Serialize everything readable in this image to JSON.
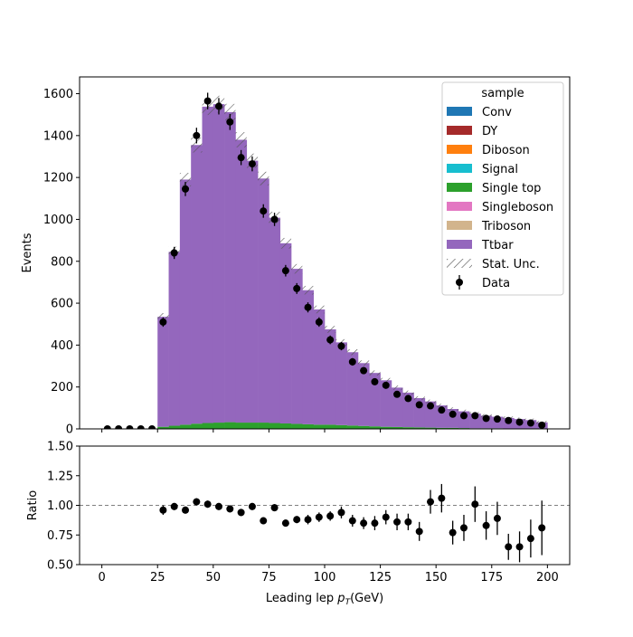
{
  "chart_data": {
    "type": "bar",
    "xlabel": "Leading lep",
    "xlabel_math": "p",
    "xlabel_math_sub": "T",
    "xlabel_unit": "(GeV)",
    "main": {
      "ylabel": "Events",
      "xlim": [
        -10,
        210
      ],
      "ylim": [
        0,
        1680
      ],
      "yticks": [
        "0",
        "200",
        "400",
        "600",
        "800",
        "1000",
        "1200",
        "1400",
        "1600"
      ],
      "ytick_values": [
        0,
        200,
        400,
        600,
        800,
        1000,
        1200,
        1400,
        1600
      ]
    },
    "ratio": {
      "ylabel": "Ratio",
      "ylim": [
        0.5,
        1.5
      ],
      "yticks": [
        "0.50",
        "0.75",
        "1.00",
        "1.25",
        "1.50"
      ],
      "ytick_values": [
        0.5,
        0.75,
        1.0,
        1.25,
        1.5
      ],
      "reference_line": 1.0
    },
    "xticks": [
      "0",
      "25",
      "50",
      "75",
      "100",
      "125",
      "150",
      "175",
      "200"
    ],
    "xtick_values": [
      0,
      25,
      50,
      75,
      100,
      125,
      150,
      175,
      200
    ],
    "bin_edges": [
      25,
      30,
      35,
      40,
      45,
      50,
      55,
      60,
      65,
      70,
      75,
      80,
      85,
      90,
      95,
      100,
      105,
      110,
      115,
      120,
      125,
      130,
      135,
      140,
      145,
      150,
      155,
      160,
      165,
      170,
      175,
      180,
      185,
      190,
      195,
      200
    ],
    "stack": [
      {
        "name": "Conv",
        "color": "#1f77b4",
        "values": [
          0,
          0,
          0,
          0,
          0,
          0,
          0,
          0,
          0,
          0,
          0,
          0,
          0,
          0,
          0,
          0,
          0,
          0,
          0,
          0,
          0,
          0,
          0,
          0,
          0,
          0,
          0,
          0,
          0,
          0,
          0,
          0,
          0,
          0,
          0
        ]
      },
      {
        "name": "DY",
        "color": "#a52a2a",
        "values": [
          0,
          0,
          0,
          0,
          0,
          0,
          0,
          0,
          0,
          0,
          0,
          0,
          0,
          0,
          0,
          0,
          0,
          0,
          0,
          0,
          0,
          0,
          0,
          0,
          0,
          0,
          0,
          0,
          0,
          0,
          0,
          0,
          0,
          0,
          0
        ]
      },
      {
        "name": "Diboson",
        "color": "#ff7f0e",
        "values": [
          0,
          0,
          0,
          0,
          0,
          0,
          0,
          0,
          0,
          0,
          0,
          0,
          0,
          0,
          0,
          0,
          0,
          0,
          0,
          0,
          0,
          0,
          0,
          0,
          0,
          0,
          0,
          0,
          0,
          0,
          0,
          0,
          0,
          0,
          0
        ]
      },
      {
        "name": "Signal",
        "color": "#17becf",
        "values": [
          0,
          0,
          0,
          0,
          0,
          0,
          0,
          0,
          0,
          0,
          0,
          0,
          0,
          0,
          0,
          0,
          0,
          0,
          0,
          0,
          0,
          0,
          0,
          0,
          0,
          0,
          0,
          0,
          0,
          0,
          0,
          0,
          0,
          0,
          0
        ]
      },
      {
        "name": "Single top",
        "color": "#2ca02c",
        "values": [
          10,
          15,
          20,
          25,
          28,
          30,
          32,
          30,
          30,
          30,
          28,
          26,
          24,
          22,
          20,
          20,
          18,
          16,
          14,
          12,
          10,
          9,
          8,
          7,
          6,
          5,
          5,
          4,
          3,
          3,
          3,
          2,
          2,
          2,
          1
        ]
      },
      {
        "name": "Singleboson",
        "color": "#e377c2",
        "values": [
          0,
          0,
          0,
          0,
          0,
          0,
          0,
          0,
          0,
          0,
          0,
          0,
          0,
          0,
          0,
          0,
          0,
          0,
          0,
          0,
          0,
          0,
          0,
          0,
          0,
          0,
          0,
          0,
          0,
          0,
          0,
          0,
          0,
          0,
          0
        ]
      },
      {
        "name": "Triboson",
        "color": "#d2b48c",
        "values": [
          0,
          0,
          0,
          0,
          0,
          0,
          0,
          0,
          0,
          0,
          0,
          0,
          0,
          0,
          0,
          0,
          0,
          0,
          0,
          0,
          0,
          0,
          0,
          0,
          0,
          0,
          0,
          0,
          0,
          0,
          0,
          0,
          0,
          0,
          0
        ]
      },
      {
        "name": "Ttbar",
        "color": "#9467bd",
        "values": [
          525,
          830,
          1170,
          1330,
          1510,
          1520,
          1480,
          1350,
          1250,
          1165,
          980,
          860,
          740,
          640,
          550,
          455,
          395,
          350,
          300,
          255,
          222,
          188,
          165,
          140,
          125,
          107,
          90,
          80,
          70,
          60,
          55,
          50,
          45,
          40,
          30
        ]
      }
    ],
    "stat_unc_label": "Stat. Unc.",
    "stat_unc_rel": 0.022,
    "data": {
      "name": "Data",
      "x": [
        2.5,
        7.5,
        12.5,
        17.5,
        22.5,
        27.5,
        32.5,
        37.5,
        42.5,
        47.5,
        52.5,
        57.5,
        62.5,
        67.5,
        72.5,
        77.5,
        82.5,
        87.5,
        92.5,
        97.5,
        102.5,
        107.5,
        112.5,
        117.5,
        122.5,
        127.5,
        132.5,
        137.5,
        142.5,
        147.5,
        152.5,
        157.5,
        162.5,
        167.5,
        172.5,
        177.5,
        182.5,
        187.5,
        192.5,
        197.5
      ],
      "y": [
        0,
        0,
        0,
        0,
        0,
        510,
        840,
        1145,
        1400,
        1565,
        1540,
        1465,
        1295,
        1265,
        1040,
        1000,
        755,
        670,
        580,
        510,
        425,
        395,
        320,
        278,
        225,
        208,
        165,
        145,
        115,
        110,
        90,
        70,
        63,
        63,
        50,
        47,
        40,
        32,
        28,
        18
      ]
    },
    "ratio_points": {
      "x": [
        27.5,
        32.5,
        37.5,
        42.5,
        47.5,
        52.5,
        57.5,
        62.5,
        67.5,
        72.5,
        77.5,
        82.5,
        87.5,
        92.5,
        97.5,
        102.5,
        107.5,
        112.5,
        117.5,
        122.5,
        127.5,
        132.5,
        137.5,
        142.5,
        147.5,
        152.5,
        157.5,
        162.5,
        167.5,
        172.5,
        177.5,
        182.5,
        187.5,
        192.5,
        197.5
      ],
      "y": [
        0.96,
        0.99,
        0.96,
        1.03,
        1.01,
        0.99,
        0.97,
        0.94,
        0.99,
        0.87,
        0.98,
        0.85,
        0.88,
        0.88,
        0.9,
        0.91,
        0.94,
        0.87,
        0.85,
        0.85,
        0.9,
        0.86,
        0.86,
        0.78,
        1.03,
        1.06,
        0.77,
        0.81,
        1.01,
        0.83,
        0.89,
        0.65,
        0.65,
        0.72,
        0.81
      ],
      "err": [
        0.04,
        0.03,
        0.03,
        0.03,
        0.03,
        0.03,
        0.03,
        0.03,
        0.03,
        0.03,
        0.03,
        0.03,
        0.03,
        0.04,
        0.04,
        0.04,
        0.05,
        0.05,
        0.05,
        0.06,
        0.06,
        0.07,
        0.07,
        0.08,
        0.1,
        0.12,
        0.1,
        0.11,
        0.15,
        0.12,
        0.14,
        0.11,
        0.13,
        0.16,
        0.23
      ]
    },
    "legend": {
      "title": "sample",
      "placement": "top-right",
      "entries": [
        "Conv",
        "DY",
        "Diboson",
        "Signal",
        "Single top",
        "Singleboson",
        "Triboson",
        "Ttbar",
        "Stat. Unc.",
        "Data"
      ]
    }
  }
}
